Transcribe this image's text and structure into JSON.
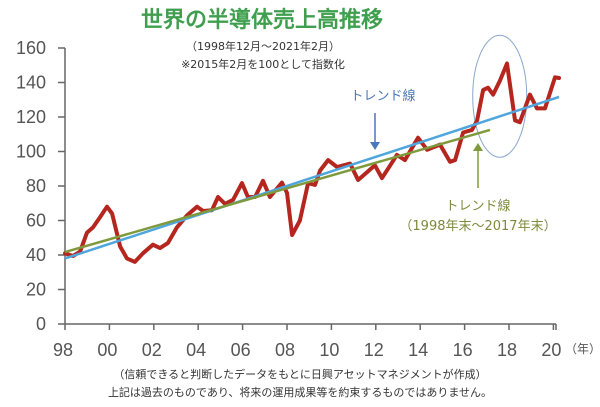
{
  "chart_data": {
    "type": "line",
    "title": "世界の半導体売上高推移",
    "subtitle": [
      "（1998年12月～2021年2月）",
      "※2015年2月を100として指数化"
    ],
    "xlabel": "（年）",
    "ylabel": "",
    "xlim": [
      1998.92,
      2021.17
    ],
    "ylim": [
      0,
      160
    ],
    "yticks": [
      0,
      20,
      40,
      60,
      80,
      100,
      120,
      140,
      160
    ],
    "xtick_labels": [
      "98",
      "00",
      "02",
      "04",
      "06",
      "08",
      "10",
      "12",
      "14",
      "16",
      "18",
      "20"
    ],
    "grid": false,
    "series": [
      {
        "color": "#b5261e",
        "x": [
          1998.92,
          1999.28,
          1999.6,
          1999.91,
          2000.18,
          2000.5,
          2000.81,
          2001.04,
          2001.4,
          2001.71,
          2002.07,
          2002.43,
          2002.88,
          2003.2,
          2003.56,
          2003.96,
          2004.42,
          2004.87,
          2005.14,
          2005.54,
          2005.81,
          2006.13,
          2006.49,
          2006.89,
          2007.16,
          2007.48,
          2007.84,
          2008.15,
          2008.69,
          2008.92,
          2009.15,
          2009.5,
          2009.87,
          2010.18,
          2010.41,
          2010.77,
          2011.17,
          2011.76,
          2012.12,
          2012.52,
          2012.88,
          2013.2,
          2013.87,
          2014.23,
          2014.82,
          2015.23,
          2015.81,
          2016.26,
          2016.49,
          2016.85,
          2017.25,
          2017.48,
          2017.75,
          2017.97,
          2018.2,
          2018.51,
          2018.83,
          2019.19,
          2019.41,
          2019.86,
          2020.18,
          2020.54,
          2020.99,
          2021.17
        ],
        "y": [
          41,
          39.4,
          42,
          53,
          56,
          62,
          68,
          64,
          45,
          38,
          36,
          41,
          46,
          44,
          47,
          56,
          63,
          68,
          65.5,
          66,
          73.6,
          69.6,
          72,
          81.7,
          73.6,
          73.6,
          83,
          73.6,
          82,
          76,
          51.6,
          60,
          81.7,
          80.6,
          89,
          95,
          91,
          93,
          83.5,
          88,
          92,
          84.6,
          98,
          95,
          108,
          101,
          104,
          94,
          95,
          111,
          112.5,
          118,
          135.6,
          137,
          133,
          141,
          151,
          118,
          117,
          133,
          125,
          125,
          143,
          142.6
        ]
      }
    ],
    "trend_lines": [
      {
        "label": "トレンド線",
        "color": "#4ea6dc",
        "text_color": "#4a78b8",
        "x": [
          1998.92,
          2021.17
        ],
        "y": [
          38,
          131.6
        ]
      },
      {
        "label": "トレンド線",
        "period": "（1998年末～2017年末）",
        "color": "#7f9a3c",
        "text_color": "#7d8a3e",
        "x": [
          1998.92,
          2018.06
        ],
        "y": [
          41.7,
          112.5
        ]
      }
    ],
    "highlight": {
      "shape": "ellipse",
      "color": "#8aa6cc",
      "x_center": 2018.5,
      "y_center": 132
    }
  },
  "footer": {
    "source": "（信頼できると判断したデータをもとに日興アセットマネジメントが作成）",
    "disclaimer": "上記は過去のものであり、将来の運用成果等を約束するものではありません。"
  },
  "colors": {
    "title": "#3f9f4e",
    "axis": "#666666"
  }
}
